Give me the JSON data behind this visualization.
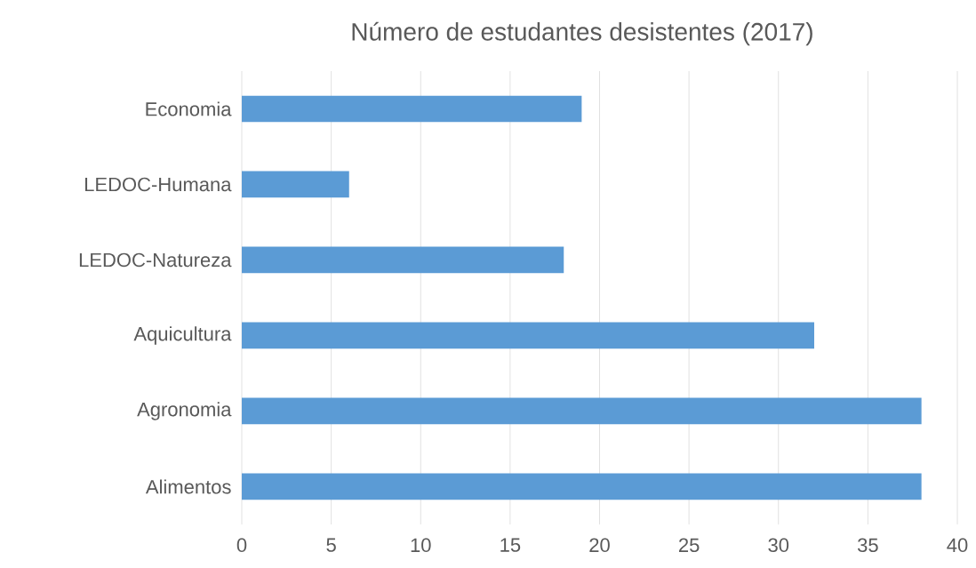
{
  "chart_data": {
    "type": "bar",
    "orientation": "horizontal",
    "title": "Número de estudantes desistentes (2017)",
    "categories": [
      "Economia",
      "LEDOC-Humana",
      "LEDOC-Natureza",
      "Aquicultura",
      "Agronomia",
      "Alimentos"
    ],
    "values": [
      19,
      6,
      18,
      32,
      38,
      38
    ],
    "color": "#5b9bd5",
    "xlim": [
      0,
      40
    ],
    "xticks": [
      0,
      5,
      10,
      15,
      20,
      25,
      30,
      35,
      40
    ],
    "grid": "x"
  }
}
